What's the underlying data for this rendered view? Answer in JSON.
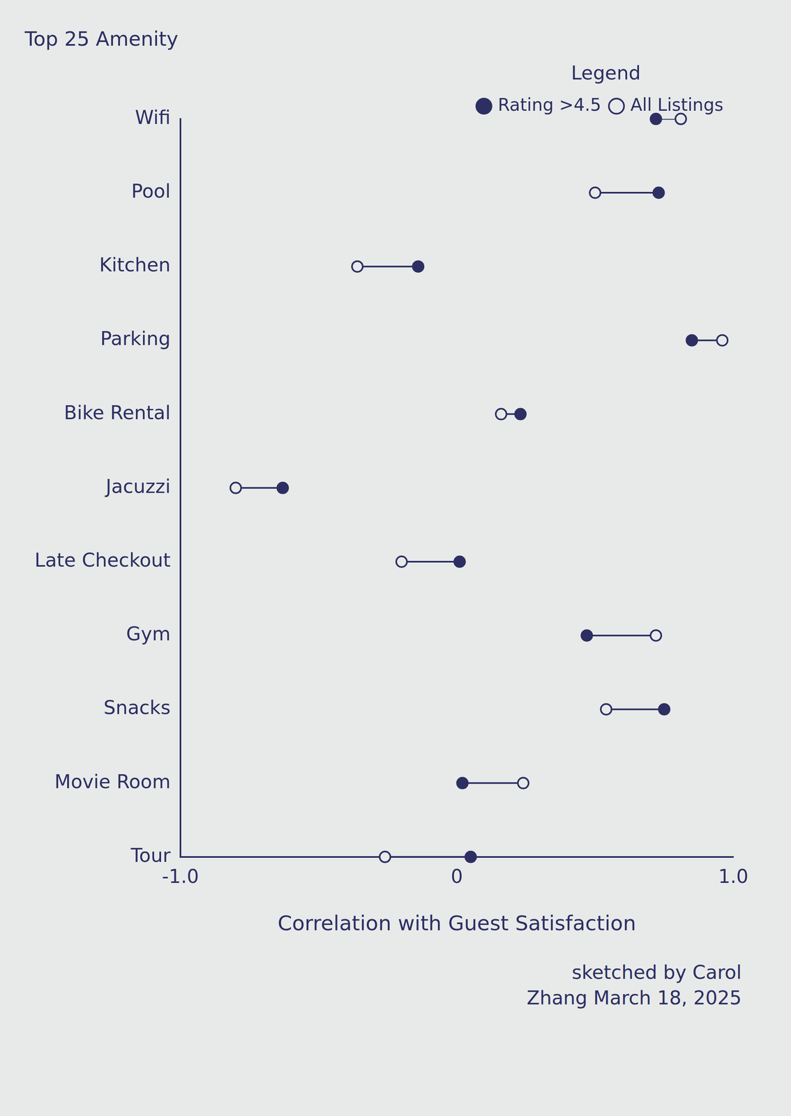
{
  "chart_data": {
    "type": "dumbbell",
    "orientation": "horizontal",
    "ylabel": "Top 25 Amenity",
    "xlabel": "Correlation with Guest Satisfaction",
    "annotation": "sketched by Carol Zhang March 18, 2025",
    "legend_title": "Legend",
    "legend": "upper right",
    "grid": false,
    "categories": [
      "Wifi",
      "Pool",
      "Kitchen",
      "Parking",
      "Bike Rental",
      "Jacuzzi",
      "Late Checkout",
      "Gym",
      "Snacks",
      "Movie Room",
      "Tour"
    ],
    "series": [
      {
        "name": "Rating >4.5",
        "color": "#2d2f63",
        "marker": "filled_circle",
        "values": [
          0.72,
          0.73,
          -0.14,
          0.85,
          0.23,
          -0.63,
          0.01,
          0.47,
          0.75,
          0.02,
          0.05
        ]
      },
      {
        "name": "All Listings",
        "color": "#2d2f63",
        "marker": "hollow_circle",
        "values": [
          0.81,
          0.5,
          -0.36,
          0.96,
          0.16,
          -0.8,
          -0.2,
          0.72,
          0.54,
          0.24,
          -0.26
        ]
      }
    ],
    "xlim": [
      -1,
      1
    ],
    "xticks": [
      {
        "value": -1,
        "label": "-1.0"
      },
      0,
      {
        "value": 1,
        "label": "1.0"
      }
    ]
  }
}
